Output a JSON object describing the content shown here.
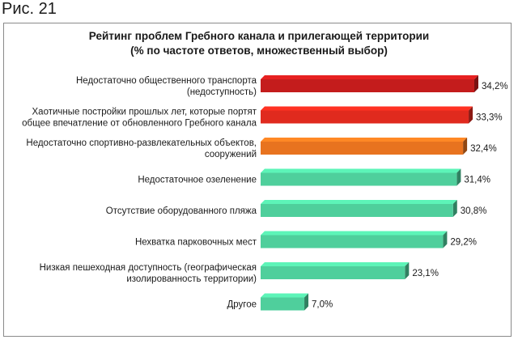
{
  "figure_label": "Рис. 21",
  "chart_data": {
    "type": "bar",
    "orientation": "horizontal",
    "title": "Рейтинг проблем Гребного канала и прилегающей территории",
    "subtitle": "(% по частоте ответов, множественный выбор)",
    "categories": [
      [
        "Недостаточно общественного транспорта",
        "(недоступность)"
      ],
      [
        "Хаотичные постройки прошлых лет, которые портят",
        "общее впечатление от обновленного Гребного канала"
      ],
      [
        "Недостаточно спортивно-развлекательных объектов,",
        "сооружений"
      ],
      [
        "Недостаточное озеленение"
      ],
      [
        "Отсутствие оборудованного пляжа"
      ],
      [
        "Нехватка парковочных мест"
      ],
      [
        "Низкая пешеходная доступность (географическая",
        "изолированность территории)"
      ],
      [
        "Другое"
      ]
    ],
    "values": [
      34.2,
      33.3,
      32.4,
      31.4,
      30.8,
      29.2,
      23.1,
      7.0
    ],
    "value_labels": [
      "34,2%",
      "33,3%",
      "32,4%",
      "31,4%",
      "30,8%",
      "29,2%",
      "23,1%",
      "7,0%"
    ],
    "colors": [
      "#c41c1c",
      "#e02a1e",
      "#e8731f",
      "#4fcf9c",
      "#4fcf9c",
      "#4fcf9c",
      "#4fcf9c",
      "#4fcf9c"
    ],
    "xlim": [
      0,
      34.2
    ]
  }
}
